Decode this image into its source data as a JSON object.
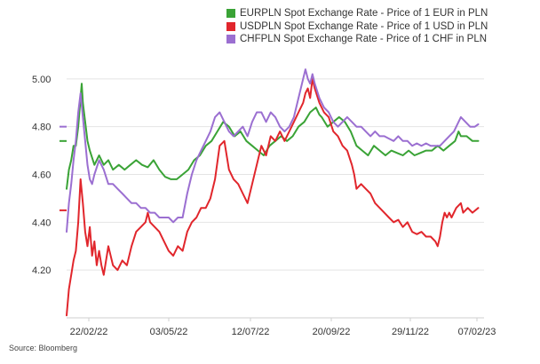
{
  "chart_data": {
    "type": "line",
    "title": "",
    "xlabel": "",
    "ylabel": "",
    "x_ticks": [
      "22/02/22",
      "03/05/22",
      "12/07/22",
      "20/09/22",
      "29/11/22",
      "07/02/23"
    ],
    "y_ticks": [
      "5.00",
      "4.80",
      "4.60",
      "4.40",
      "4.20"
    ],
    "ylim": [
      4.0,
      5.07
    ],
    "xlim_days": [
      0,
      360
    ],
    "grid": "horizontal",
    "legend_position": "top-right",
    "series": [
      {
        "name": "EURPLN Spot Exchange Rate - Price of 1 EUR in PLN",
        "color": "#3aa336",
        "last_value_marker": 4.74,
        "points": [
          [
            0,
            4.54
          ],
          [
            2,
            4.62
          ],
          [
            4,
            4.66
          ],
          [
            6,
            4.72
          ],
          [
            8,
            4.72
          ],
          [
            10,
            4.8
          ],
          [
            12,
            4.92
          ],
          [
            13,
            4.98
          ],
          [
            14,
            4.9
          ],
          [
            16,
            4.82
          ],
          [
            18,
            4.74
          ],
          [
            20,
            4.7
          ],
          [
            24,
            4.64
          ],
          [
            28,
            4.68
          ],
          [
            32,
            4.64
          ],
          [
            36,
            4.66
          ],
          [
            40,
            4.62
          ],
          [
            45,
            4.64
          ],
          [
            50,
            4.62
          ],
          [
            55,
            4.64
          ],
          [
            60,
            4.66
          ],
          [
            65,
            4.64
          ],
          [
            70,
            4.63
          ],
          [
            75,
            4.66
          ],
          [
            80,
            4.62
          ],
          [
            85,
            4.59
          ],
          [
            90,
            4.58
          ],
          [
            95,
            4.58
          ],
          [
            100,
            4.6
          ],
          [
            105,
            4.62
          ],
          [
            110,
            4.66
          ],
          [
            115,
            4.68
          ],
          [
            120,
            4.72
          ],
          [
            125,
            4.74
          ],
          [
            130,
            4.78
          ],
          [
            135,
            4.82
          ],
          [
            140,
            4.8
          ],
          [
            145,
            4.76
          ],
          [
            150,
            4.78
          ],
          [
            155,
            4.74
          ],
          [
            160,
            4.72
          ],
          [
            165,
            4.7
          ],
          [
            170,
            4.68
          ],
          [
            175,
            4.72
          ],
          [
            180,
            4.74
          ],
          [
            185,
            4.76
          ],
          [
            190,
            4.74
          ],
          [
            195,
            4.76
          ],
          [
            200,
            4.8
          ],
          [
            205,
            4.82
          ],
          [
            210,
            4.86
          ],
          [
            215,
            4.88
          ],
          [
            218,
            4.85
          ],
          [
            220,
            4.84
          ],
          [
            225,
            4.8
          ],
          [
            230,
            4.82
          ],
          [
            235,
            4.84
          ],
          [
            240,
            4.82
          ],
          [
            245,
            4.78
          ],
          [
            250,
            4.72
          ],
          [
            255,
            4.7
          ],
          [
            260,
            4.68
          ],
          [
            265,
            4.72
          ],
          [
            270,
            4.7
          ],
          [
            275,
            4.68
          ],
          [
            280,
            4.7
          ],
          [
            285,
            4.69
          ],
          [
            290,
            4.68
          ],
          [
            295,
            4.7
          ],
          [
            300,
            4.68
          ],
          [
            305,
            4.69
          ],
          [
            310,
            4.7
          ],
          [
            315,
            4.7
          ],
          [
            320,
            4.72
          ],
          [
            325,
            4.7
          ],
          [
            330,
            4.72
          ],
          [
            335,
            4.74
          ],
          [
            338,
            4.78
          ],
          [
            340,
            4.76
          ],
          [
            345,
            4.76
          ],
          [
            350,
            4.74
          ],
          [
            355,
            4.74
          ]
        ]
      },
      {
        "name": "USDPLN Spot Exchange Rate - Price of 1 USD in PLN",
        "color": "#e1262c",
        "last_value_marker": 4.45,
        "points": [
          [
            0,
            4.01
          ],
          [
            2,
            4.12
          ],
          [
            4,
            4.18
          ],
          [
            6,
            4.24
          ],
          [
            8,
            4.28
          ],
          [
            10,
            4.4
          ],
          [
            12,
            4.58
          ],
          [
            14,
            4.48
          ],
          [
            16,
            4.36
          ],
          [
            18,
            4.3
          ],
          [
            20,
            4.38
          ],
          [
            22,
            4.26
          ],
          [
            24,
            4.32
          ],
          [
            26,
            4.22
          ],
          [
            28,
            4.28
          ],
          [
            30,
            4.22
          ],
          [
            32,
            4.18
          ],
          [
            34,
            4.24
          ],
          [
            36,
            4.3
          ],
          [
            40,
            4.22
          ],
          [
            44,
            4.2
          ],
          [
            48,
            4.24
          ],
          [
            52,
            4.22
          ],
          [
            56,
            4.3
          ],
          [
            60,
            4.36
          ],
          [
            64,
            4.38
          ],
          [
            68,
            4.4
          ],
          [
            70,
            4.44
          ],
          [
            72,
            4.4
          ],
          [
            76,
            4.38
          ],
          [
            80,
            4.36
          ],
          [
            84,
            4.32
          ],
          [
            88,
            4.28
          ],
          [
            92,
            4.26
          ],
          [
            96,
            4.3
          ],
          [
            100,
            4.28
          ],
          [
            104,
            4.36
          ],
          [
            108,
            4.4
          ],
          [
            112,
            4.42
          ],
          [
            116,
            4.46
          ],
          [
            120,
            4.46
          ],
          [
            124,
            4.5
          ],
          [
            128,
            4.58
          ],
          [
            132,
            4.72
          ],
          [
            136,
            4.74
          ],
          [
            140,
            4.62
          ],
          [
            144,
            4.58
          ],
          [
            148,
            4.56
          ],
          [
            152,
            4.52
          ],
          [
            156,
            4.48
          ],
          [
            160,
            4.56
          ],
          [
            164,
            4.64
          ],
          [
            168,
            4.72
          ],
          [
            172,
            4.68
          ],
          [
            176,
            4.76
          ],
          [
            180,
            4.74
          ],
          [
            184,
            4.78
          ],
          [
            188,
            4.74
          ],
          [
            192,
            4.78
          ],
          [
            196,
            4.82
          ],
          [
            200,
            4.86
          ],
          [
            204,
            4.9
          ],
          [
            206,
            4.94
          ],
          [
            208,
            4.96
          ],
          [
            210,
            4.92
          ],
          [
            212,
            5.0
          ],
          [
            214,
            4.96
          ],
          [
            218,
            4.9
          ],
          [
            222,
            4.86
          ],
          [
            226,
            4.84
          ],
          [
            230,
            4.78
          ],
          [
            234,
            4.76
          ],
          [
            238,
            4.72
          ],
          [
            242,
            4.7
          ],
          [
            246,
            4.64
          ],
          [
            248,
            4.6
          ],
          [
            250,
            4.54
          ],
          [
            254,
            4.56
          ],
          [
            258,
            4.54
          ],
          [
            262,
            4.52
          ],
          [
            266,
            4.48
          ],
          [
            270,
            4.46
          ],
          [
            274,
            4.44
          ],
          [
            278,
            4.42
          ],
          [
            282,
            4.4
          ],
          [
            286,
            4.41
          ],
          [
            290,
            4.38
          ],
          [
            294,
            4.4
          ],
          [
            298,
            4.36
          ],
          [
            302,
            4.35
          ],
          [
            306,
            4.36
          ],
          [
            310,
            4.34
          ],
          [
            314,
            4.34
          ],
          [
            318,
            4.32
          ],
          [
            320,
            4.3
          ],
          [
            322,
            4.34
          ],
          [
            324,
            4.4
          ],
          [
            326,
            4.44
          ],
          [
            328,
            4.42
          ],
          [
            330,
            4.44
          ],
          [
            332,
            4.42
          ],
          [
            336,
            4.46
          ],
          [
            340,
            4.48
          ],
          [
            342,
            4.44
          ],
          [
            346,
            4.46
          ],
          [
            350,
            4.44
          ],
          [
            355,
            4.46
          ]
        ]
      },
      {
        "name": "CHFPLN Spot Exchange Rate - Price of 1 CHF in PLN",
        "color": "#9b6fd1",
        "last_value_marker": 4.8,
        "points": [
          [
            0,
            4.36
          ],
          [
            2,
            4.48
          ],
          [
            4,
            4.56
          ],
          [
            6,
            4.66
          ],
          [
            8,
            4.74
          ],
          [
            10,
            4.86
          ],
          [
            12,
            4.94
          ],
          [
            14,
            4.84
          ],
          [
            16,
            4.74
          ],
          [
            18,
            4.64
          ],
          [
            20,
            4.58
          ],
          [
            22,
            4.56
          ],
          [
            24,
            4.6
          ],
          [
            28,
            4.66
          ],
          [
            32,
            4.62
          ],
          [
            36,
            4.56
          ],
          [
            40,
            4.56
          ],
          [
            44,
            4.54
          ],
          [
            48,
            4.52
          ],
          [
            52,
            4.5
          ],
          [
            56,
            4.48
          ],
          [
            60,
            4.48
          ],
          [
            64,
            4.46
          ],
          [
            68,
            4.46
          ],
          [
            72,
            4.44
          ],
          [
            76,
            4.44
          ],
          [
            80,
            4.42
          ],
          [
            84,
            4.42
          ],
          [
            88,
            4.42
          ],
          [
            92,
            4.4
          ],
          [
            96,
            4.42
          ],
          [
            100,
            4.42
          ],
          [
            104,
            4.52
          ],
          [
            108,
            4.6
          ],
          [
            112,
            4.66
          ],
          [
            116,
            4.7
          ],
          [
            120,
            4.74
          ],
          [
            124,
            4.78
          ],
          [
            128,
            4.84
          ],
          [
            132,
            4.86
          ],
          [
            136,
            4.82
          ],
          [
            140,
            4.78
          ],
          [
            144,
            4.76
          ],
          [
            148,
            4.78
          ],
          [
            152,
            4.8
          ],
          [
            156,
            4.76
          ],
          [
            160,
            4.82
          ],
          [
            164,
            4.86
          ],
          [
            168,
            4.86
          ],
          [
            172,
            4.82
          ],
          [
            176,
            4.86
          ],
          [
            180,
            4.84
          ],
          [
            184,
            4.8
          ],
          [
            188,
            4.78
          ],
          [
            192,
            4.8
          ],
          [
            196,
            4.84
          ],
          [
            200,
            4.92
          ],
          [
            204,
            5.0
          ],
          [
            206,
            5.04
          ],
          [
            208,
            5.0
          ],
          [
            210,
            4.98
          ],
          [
            212,
            5.02
          ],
          [
            214,
            4.98
          ],
          [
            218,
            4.92
          ],
          [
            222,
            4.88
          ],
          [
            226,
            4.86
          ],
          [
            230,
            4.82
          ],
          [
            234,
            4.8
          ],
          [
            238,
            4.82
          ],
          [
            242,
            4.84
          ],
          [
            246,
            4.82
          ],
          [
            250,
            4.8
          ],
          [
            254,
            4.8
          ],
          [
            258,
            4.78
          ],
          [
            262,
            4.76
          ],
          [
            266,
            4.78
          ],
          [
            270,
            4.76
          ],
          [
            274,
            4.76
          ],
          [
            278,
            4.75
          ],
          [
            282,
            4.74
          ],
          [
            286,
            4.76
          ],
          [
            290,
            4.74
          ],
          [
            294,
            4.74
          ],
          [
            298,
            4.72
          ],
          [
            302,
            4.73
          ],
          [
            306,
            4.72
          ],
          [
            310,
            4.73
          ],
          [
            314,
            4.72
          ],
          [
            318,
            4.72
          ],
          [
            322,
            4.72
          ],
          [
            326,
            4.74
          ],
          [
            330,
            4.76
          ],
          [
            334,
            4.78
          ],
          [
            338,
            4.82
          ],
          [
            340,
            4.84
          ],
          [
            344,
            4.82
          ],
          [
            348,
            4.8
          ],
          [
            352,
            4.8
          ],
          [
            355,
            4.81
          ]
        ]
      }
    ]
  },
  "source": "Source: Bloomberg"
}
